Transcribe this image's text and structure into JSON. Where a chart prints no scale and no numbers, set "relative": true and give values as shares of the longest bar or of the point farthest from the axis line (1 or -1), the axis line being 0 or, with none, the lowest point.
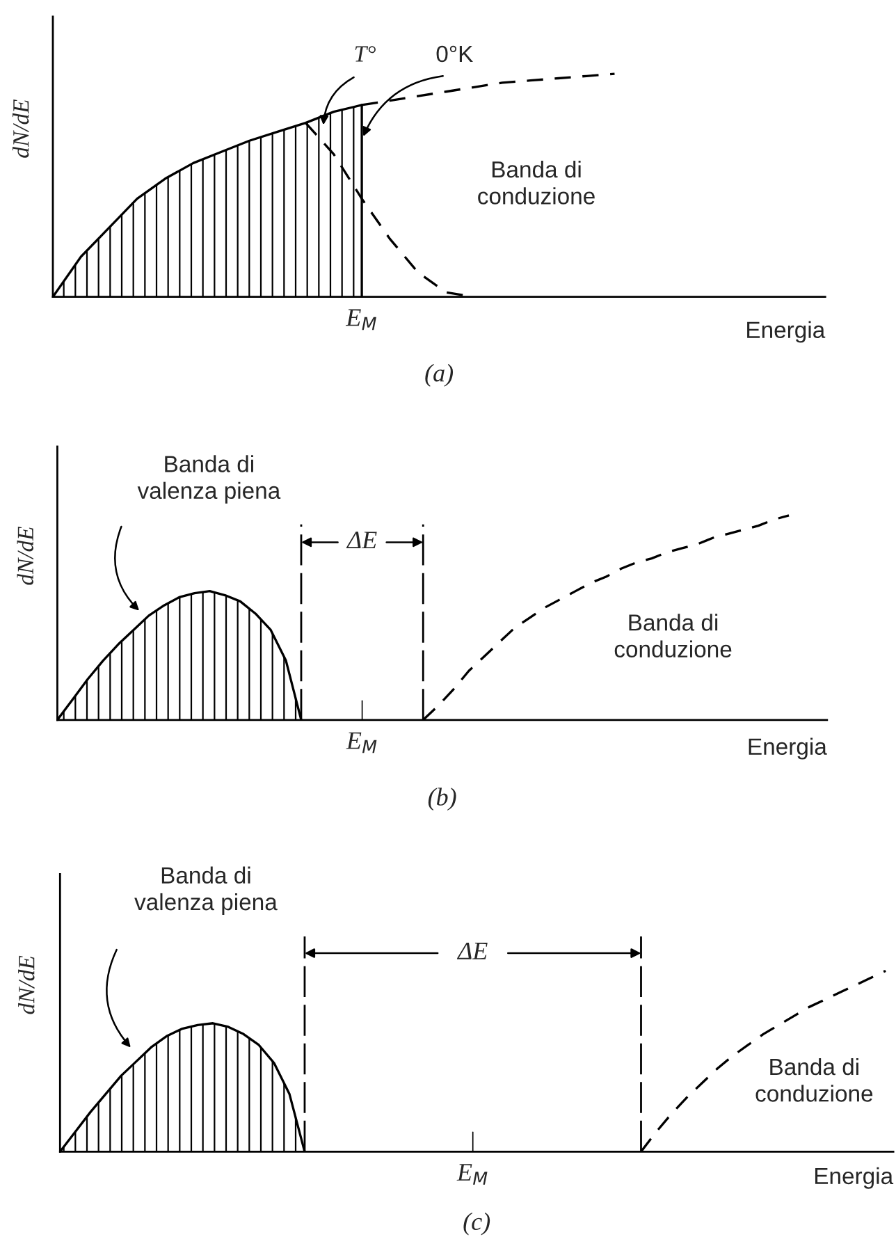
{
  "chart_data": [
    {
      "type": "line",
      "relative": true,
      "title": "(a)",
      "xlabel": "Energia",
      "ylabel": "dN/dE",
      "categories": [
        null,
        null,
        null,
        null,
        null,
        null,
        null,
        null,
        null,
        null,
        null,
        null,
        null,
        null,
        null,
        null,
        null,
        null,
        null,
        null,
        null,
        null,
        null,
        null,
        null,
        null,
        null,
        null
      ],
      "series": [
        {
          "type": "area",
          "color": "#000000",
          "line_style": "solid",
          "values": [
            0,
            0.18,
            0.31,
            0.44,
            0.53,
            0.6,
            0.65,
            0.7,
            0.74,
            0.78,
            0.83,
            0.86,
            null,
            null,
            null,
            null,
            null,
            null,
            null,
            null,
            null,
            null,
            null,
            null,
            null,
            null,
            null,
            null
          ]
        },
        {
          "type": "line",
          "color": "#000000",
          "line_style": "dashed",
          "values": [
            null,
            null,
            null,
            null,
            null,
            null,
            null,
            null,
            null,
            null,
            null,
            0.86,
            0.88,
            0.9,
            0.92,
            0.94,
            0.96,
            0.97,
            0.98,
            0.99,
            1.0,
            null,
            null,
            null,
            null,
            null,
            null,
            null
          ]
        },
        {
          "type": "line",
          "color": "#000000",
          "line_style": "dashed",
          "values": [
            null,
            null,
            null,
            null,
            null,
            null,
            null,
            null,
            null,
            0.78,
            0.64,
            0.44,
            0.26,
            0.11,
            0.02,
            0,
            null,
            null,
            null,
            null,
            null,
            null,
            null,
            null,
            null,
            null,
            null,
            null
          ]
        }
      ],
      "annotations": [
        "T°",
        "0°K",
        "Banda di\nconduzione",
        "E$_{M}$"
      ]
    },
    {
      "type": "line",
      "relative": true,
      "title": "(b)",
      "xlabel": "Energia",
      "ylabel": "dN/dE",
      "categories": [
        null,
        null,
        null,
        null,
        null,
        null,
        null,
        null,
        null,
        null,
        null,
        null,
        null,
        null,
        null,
        null,
        null,
        null,
        null,
        null,
        null,
        null,
        null,
        null,
        null,
        null,
        null,
        null,
        null,
        null,
        null,
        null,
        null,
        null,
        null,
        null,
        null,
        null,
        null,
        null,
        null,
        null,
        null,
        null,
        null,
        null,
        null,
        null,
        null,
        null,
        null
      ],
      "series": [
        {
          "type": "area",
          "color": "#000000",
          "line_style": "solid",
          "values": [
            0,
            0.1,
            0.2,
            0.29,
            0.37,
            0.44,
            0.51,
            0.56,
            0.6,
            0.62,
            0.63,
            0.61,
            0.58,
            0.52,
            0.44,
            0.29,
            0,
            null,
            null,
            null,
            null,
            null,
            null,
            null,
            null,
            null,
            null,
            null,
            null,
            null,
            null,
            null,
            null,
            null,
            null,
            null,
            null,
            null,
            null,
            null,
            null,
            null,
            null,
            null,
            null,
            null,
            null,
            null,
            null,
            null,
            null
          ]
        },
        {
          "type": "line",
          "color": "#000000",
          "line_style": "dashed",
          "values": [
            null,
            null,
            null,
            null,
            null,
            null,
            null,
            null,
            null,
            null,
            null,
            null,
            null,
            null,
            null,
            null,
            null,
            null,
            null,
            null,
            null,
            null,
            null,
            null,
            0,
            0.07,
            0.15,
            0.24,
            0.31,
            0.38,
            0.45,
            0.5,
            0.55,
            0.59,
            0.63,
            0.67,
            0.7,
            0.74,
            0.77,
            0.79,
            0.82,
            0.84,
            0.86,
            0.89,
            0.91,
            0.93,
            0.95,
            0.98,
            1.0,
            null,
            null
          ]
        }
      ],
      "annotations": [
        "Banda di\nvalenza piena",
        "ΔE",
        "Banda di\nconduzione",
        "E$_{M}$"
      ]
    },
    {
      "type": "line",
      "relative": true,
      "title": "(c)",
      "xlabel": "Energia",
      "ylabel": "dN/dE",
      "categories": [
        null,
        null,
        null,
        null,
        null,
        null,
        null,
        null,
        null,
        null,
        null,
        null,
        null,
        null,
        null,
        null,
        null,
        null,
        null,
        null,
        null,
        null,
        null,
        null,
        null,
        null,
        null,
        null,
        null,
        null,
        null,
        null,
        null,
        null,
        null,
        null,
        null,
        null,
        null,
        null,
        null,
        null,
        null,
        null,
        null,
        null,
        null,
        null,
        null,
        null,
        null,
        null,
        null,
        null,
        null
      ],
      "series": [
        {
          "type": "area",
          "color": "#000000",
          "line_style": "solid",
          "values": [
            0,
            0.11,
            0.22,
            0.32,
            0.42,
            0.5,
            0.58,
            0.64,
            0.68,
            0.7,
            0.71,
            0.69,
            0.65,
            0.59,
            0.49,
            0.32,
            0,
            null,
            null,
            null,
            null,
            null,
            null,
            null,
            null,
            null,
            null,
            null,
            null,
            null,
            null,
            null,
            null,
            null,
            null,
            null,
            null,
            null,
            null,
            null,
            null,
            null,
            null,
            null,
            null,
            null,
            null,
            null,
            null,
            null,
            null,
            null,
            null,
            null,
            null
          ]
        },
        {
          "type": "line",
          "color": "#000000",
          "line_style": "dashed",
          "values": [
            null,
            null,
            null,
            null,
            null,
            null,
            null,
            null,
            null,
            null,
            null,
            null,
            null,
            null,
            null,
            null,
            null,
            null,
            null,
            null,
            null,
            null,
            null,
            null,
            null,
            null,
            null,
            null,
            null,
            null,
            null,
            null,
            null,
            null,
            null,
            null,
            null,
            null,
            0,
            0.11,
            0.21,
            0.3,
            0.38,
            0.46,
            0.53,
            0.59,
            0.65,
            0.7,
            0.75,
            0.8,
            0.84,
            0.88,
            0.92,
            0.96,
            1.0
          ]
        }
      ],
      "annotations": [
        "Banda di\nvalenza piena",
        "ΔE",
        "Banda di\nconduzione",
        "E$_{M}$"
      ]
    }
  ]
}
